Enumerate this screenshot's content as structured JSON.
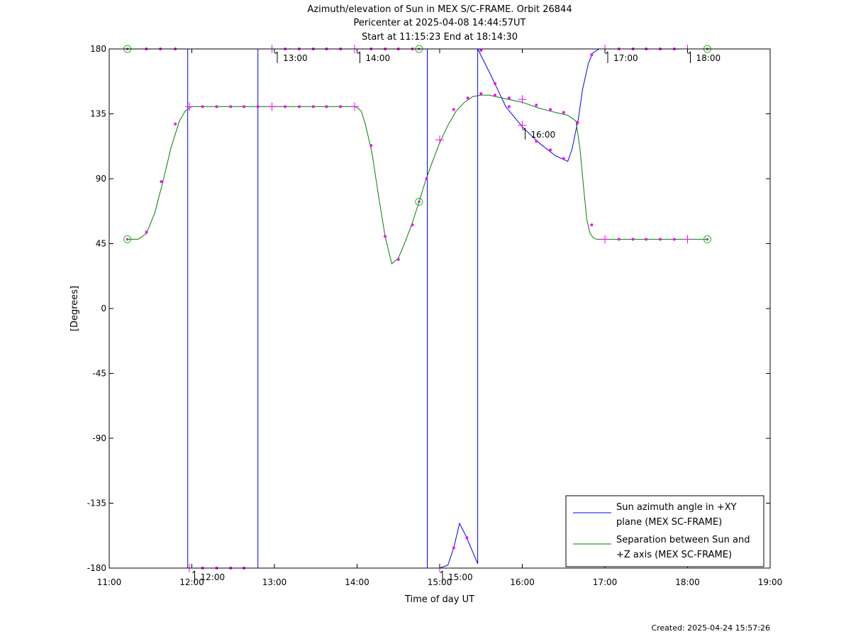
{
  "chart_data": {
    "type": "line",
    "title_lines": [
      "Azimuth/elevation of Sun in MEX S/C-FRAME.  Orbit 26844",
      "Pericenter at 2025-04-08 14:44:57UT",
      "Start at 11:15:23 End at 18:14:30"
    ],
    "xlabel": "Time of day UT",
    "ylabel": "[Degrees]",
    "xlim": [
      11.0,
      19.0
    ],
    "ylim": [
      -180,
      180
    ],
    "x_ticks": [
      {
        "value": 11,
        "label": "11:00"
      },
      {
        "value": 12,
        "label": "12:00"
      },
      {
        "value": 13,
        "label": "13:00"
      },
      {
        "value": 14,
        "label": "14:00"
      },
      {
        "value": 15,
        "label": "15:00"
      },
      {
        "value": 16,
        "label": "16:00"
      },
      {
        "value": 17,
        "label": "17:00"
      },
      {
        "value": 18,
        "label": "18:00"
      },
      {
        "value": 19,
        "label": "19:00"
      }
    ],
    "y_ticks": [
      {
        "value": 180,
        "label": "180"
      },
      {
        "value": 135,
        "label": "135"
      },
      {
        "value": 90,
        "label": "90"
      },
      {
        "value": 45,
        "label": "45"
      },
      {
        "value": 0,
        "label": "0"
      },
      {
        "value": -45,
        "label": "-45"
      },
      {
        "value": -90,
        "label": "-90"
      },
      {
        "value": -135,
        "label": "-135"
      },
      {
        "value": -180,
        "label": "-180"
      }
    ],
    "series": [
      {
        "name": "Sun azimuth angle in +XY plane (MEX SC-FRAME)",
        "legend_lines": [
          "Sun azimuth angle in +XY",
          "plane (MEX SC-FRAME)"
        ],
        "color": "#0000ff",
        "x": [
          11.22,
          11.95,
          11.95,
          12.8,
          12.8,
          14.85,
          14.85,
          15.0,
          15.1,
          15.17,
          15.24,
          15.32,
          15.46,
          15.46,
          15.6,
          15.8,
          16.0,
          16.2,
          16.4,
          16.55,
          16.6,
          16.68,
          16.73,
          16.8,
          16.85,
          16.93,
          17.0,
          17.5,
          18.0,
          18.24
        ],
        "y": [
          180,
          180,
          -180,
          -180,
          180,
          180,
          -180,
          -180,
          -178,
          -166,
          -149,
          -158,
          -177,
          180,
          164,
          140,
          126,
          115,
          106,
          102,
          110,
          132,
          152,
          170,
          177,
          180,
          180,
          180,
          180,
          180
        ]
      },
      {
        "name": "Separation between Sun and +Z axis (MEX SC-FRAME)",
        "legend_lines": [
          "Separation between Sun and",
          "+Z axis (MEX SC-FRAME)"
        ],
        "color": "#008000",
        "x": [
          11.22,
          11.35,
          11.45,
          11.55,
          11.65,
          11.75,
          11.85,
          11.92,
          11.97,
          12.0,
          12.5,
          13.0,
          13.5,
          13.98,
          14.05,
          14.1,
          14.18,
          14.26,
          14.34,
          14.42,
          14.5,
          14.58,
          14.66,
          14.74,
          14.82,
          14.9,
          15.0,
          15.1,
          15.2,
          15.3,
          15.4,
          15.5,
          15.6,
          15.75,
          16.0,
          16.2,
          16.4,
          16.55,
          16.65,
          16.7,
          16.74,
          16.78,
          16.82,
          16.86,
          16.9,
          17.0,
          17.5,
          18.0,
          18.24
        ],
        "y": [
          48,
          48,
          52,
          66,
          88,
          112,
          130,
          137,
          139,
          140,
          140,
          140,
          140,
          140,
          137,
          128,
          108,
          78,
          50,
          31,
          35,
          46,
          58,
          72,
          87,
          100,
          115,
          127,
          137,
          143,
          147,
          148,
          148,
          146,
          143,
          139,
          136,
          134,
          130,
          110,
          85,
          62,
          52,
          49,
          48,
          48,
          48,
          48,
          48
        ]
      }
    ],
    "markers": {
      "color": "#ff00ff",
      "circle_color": "#00cc00",
      "points": [
        {
          "x": 11.22,
          "y": 180,
          "type": "circle"
        },
        {
          "x": 11.22,
          "y": 48,
          "type": "circle"
        },
        {
          "x": 11.45,
          "y": 180,
          "type": "dot"
        },
        {
          "x": 11.62,
          "y": 180,
          "type": "dot"
        },
        {
          "x": 11.8,
          "y": 180,
          "type": "dot"
        },
        {
          "x": 11.45,
          "y": 53,
          "type": "dot"
        },
        {
          "x": 11.63,
          "y": 88,
          "type": "dot"
        },
        {
          "x": 11.8,
          "y": 128,
          "type": "dot"
        },
        {
          "x": 11.97,
          "y": 140,
          "type": "cross"
        },
        {
          "x": 12.13,
          "y": 140,
          "type": "dot"
        },
        {
          "x": 12.3,
          "y": 140,
          "type": "dot"
        },
        {
          "x": 12.47,
          "y": 140,
          "type": "dot"
        },
        {
          "x": 12.63,
          "y": 140,
          "type": "dot"
        },
        {
          "x": 12.8,
          "y": 140,
          "type": "dot"
        },
        {
          "x": 12.97,
          "y": 140,
          "type": "cross"
        },
        {
          "x": 13.13,
          "y": 140,
          "type": "dot"
        },
        {
          "x": 13.3,
          "y": 140,
          "type": "dot"
        },
        {
          "x": 13.47,
          "y": 140,
          "type": "dot"
        },
        {
          "x": 13.63,
          "y": 140,
          "type": "dot"
        },
        {
          "x": 13.8,
          "y": 140,
          "type": "dot"
        },
        {
          "x": 13.97,
          "y": 140,
          "type": "cross"
        },
        {
          "x": 14.17,
          "y": 113,
          "type": "dot"
        },
        {
          "x": 14.34,
          "y": 50,
          "type": "dot"
        },
        {
          "x": 14.5,
          "y": 34,
          "type": "dot"
        },
        {
          "x": 14.67,
          "y": 58,
          "type": "dot"
        },
        {
          "x": 14.75,
          "y": 74,
          "type": "circle"
        },
        {
          "x": 14.84,
          "y": 90,
          "type": "dot"
        },
        {
          "x": 15.0,
          "y": 117,
          "type": "cross"
        },
        {
          "x": 15.17,
          "y": 138,
          "type": "dot"
        },
        {
          "x": 15.34,
          "y": 146,
          "type": "dot"
        },
        {
          "x": 15.5,
          "y": 149,
          "type": "dot"
        },
        {
          "x": 15.67,
          "y": 148,
          "type": "dot"
        },
        {
          "x": 15.84,
          "y": 146,
          "type": "dot"
        },
        {
          "x": 16.0,
          "y": 145,
          "type": "cross"
        },
        {
          "x": 16.17,
          "y": 141,
          "type": "dot"
        },
        {
          "x": 16.34,
          "y": 138,
          "type": "dot"
        },
        {
          "x": 16.5,
          "y": 136,
          "type": "dot"
        },
        {
          "x": 16.67,
          "y": 129,
          "type": "dot"
        },
        {
          "x": 16.84,
          "y": 58,
          "type": "dot"
        },
        {
          "x": 17.0,
          "y": 48,
          "type": "cross"
        },
        {
          "x": 17.17,
          "y": 48,
          "type": "dot"
        },
        {
          "x": 17.34,
          "y": 48,
          "type": "dot"
        },
        {
          "x": 17.5,
          "y": 48,
          "type": "dot"
        },
        {
          "x": 17.67,
          "y": 48,
          "type": "dot"
        },
        {
          "x": 17.84,
          "y": 48,
          "type": "dot"
        },
        {
          "x": 18.0,
          "y": 48,
          "type": "cross"
        },
        {
          "x": 18.24,
          "y": 48,
          "type": "circle"
        },
        {
          "x": 11.97,
          "y": -180,
          "type": "cross"
        },
        {
          "x": 12.13,
          "y": -180,
          "type": "dot"
        },
        {
          "x": 12.3,
          "y": -180,
          "type": "dot"
        },
        {
          "x": 12.47,
          "y": -180,
          "type": "dot"
        },
        {
          "x": 12.63,
          "y": -180,
          "type": "dot"
        },
        {
          "x": 12.97,
          "y": 180,
          "type": "cross"
        },
        {
          "x": 13.13,
          "y": 180,
          "type": "dot"
        },
        {
          "x": 13.3,
          "y": 180,
          "type": "dot"
        },
        {
          "x": 13.47,
          "y": 180,
          "type": "dot"
        },
        {
          "x": 13.63,
          "y": 180,
          "type": "dot"
        },
        {
          "x": 13.8,
          "y": 180,
          "type": "dot"
        },
        {
          "x": 13.97,
          "y": 180,
          "type": "cross"
        },
        {
          "x": 14.17,
          "y": 180,
          "type": "dot"
        },
        {
          "x": 14.34,
          "y": 180,
          "type": "dot"
        },
        {
          "x": 14.5,
          "y": 180,
          "type": "dot"
        },
        {
          "x": 14.67,
          "y": 180,
          "type": "dot"
        },
        {
          "x": 14.75,
          "y": 180,
          "type": "circle"
        },
        {
          "x": 15.0,
          "y": -180,
          "type": "cross"
        },
        {
          "x": 15.17,
          "y": -166,
          "type": "dot"
        },
        {
          "x": 15.33,
          "y": -159,
          "type": "dot"
        },
        {
          "x": 15.5,
          "y": 179,
          "type": "dot"
        },
        {
          "x": 15.67,
          "y": 156,
          "type": "dot"
        },
        {
          "x": 15.84,
          "y": 140,
          "type": "dot"
        },
        {
          "x": 16.0,
          "y": 127,
          "type": "cross"
        },
        {
          "x": 16.17,
          "y": 116,
          "type": "dot"
        },
        {
          "x": 16.34,
          "y": 110,
          "type": "dot"
        },
        {
          "x": 16.5,
          "y": 104,
          "type": "dot"
        },
        {
          "x": 16.84,
          "y": 176,
          "type": "dot"
        },
        {
          "x": 17.0,
          "y": 180,
          "type": "cross"
        },
        {
          "x": 17.17,
          "y": 180,
          "type": "dot"
        },
        {
          "x": 17.34,
          "y": 180,
          "type": "dot"
        },
        {
          "x": 17.5,
          "y": 180,
          "type": "dot"
        },
        {
          "x": 17.67,
          "y": 180,
          "type": "dot"
        },
        {
          "x": 17.84,
          "y": 180,
          "type": "dot"
        },
        {
          "x": 18.0,
          "y": 180,
          "type": "cross"
        },
        {
          "x": 18.24,
          "y": 180,
          "type": "circle"
        }
      ]
    },
    "time_annotations": [
      {
        "x": 12.0,
        "y": -180,
        "label": "12:00"
      },
      {
        "x": 13.0,
        "y": 180,
        "label": "13:00"
      },
      {
        "x": 14.0,
        "y": 180,
        "label": "14:00"
      },
      {
        "x": 15.0,
        "y": -180,
        "label": "15:00"
      },
      {
        "x": 16.0,
        "y": 127,
        "label": "16:00"
      },
      {
        "x": 17.0,
        "y": 180,
        "label": "17:00"
      },
      {
        "x": 18.0,
        "y": 180,
        "label": "18:00"
      }
    ],
    "legend_position": "bottom-right",
    "grid": false
  },
  "footer": {
    "created": "Created: 2025-04-24 15:57:26"
  }
}
